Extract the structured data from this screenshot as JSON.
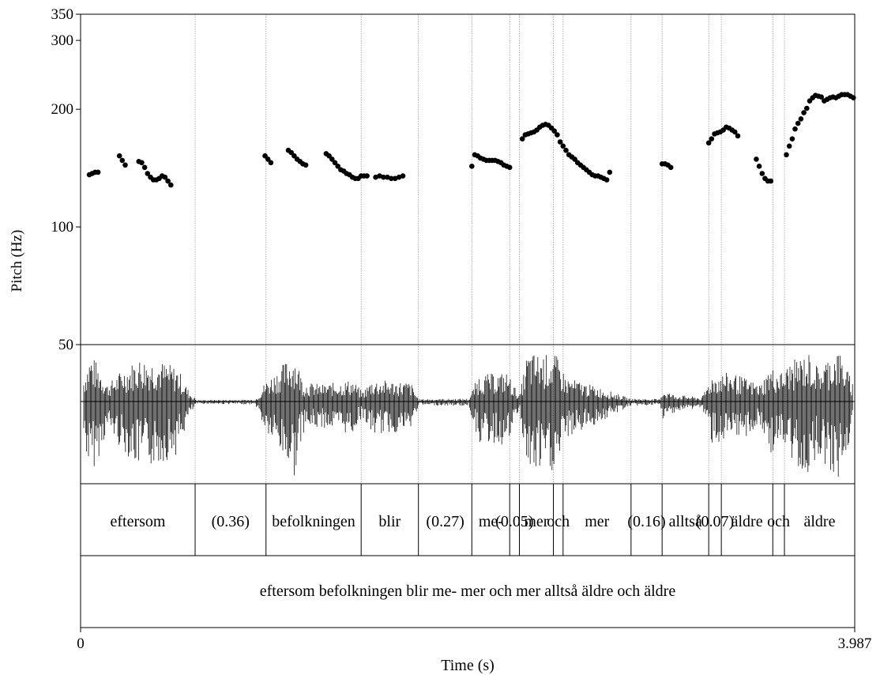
{
  "chart_data": {
    "type": "scatter",
    "ylabel": "Pitch (Hz)",
    "xlabel": "Time (s)",
    "ylim": [
      50,
      350
    ],
    "xlim": [
      0,
      3.987
    ],
    "y_ticks": [
      "50",
      "100",
      "200",
      "300",
      "350"
    ],
    "y_tick_values": [
      50,
      100,
      200,
      300,
      350
    ],
    "x_tick_start": "0",
    "x_tick_end": "3.987",
    "grid": false,
    "boundaries": [
      0.59,
      0.955,
      1.445,
      1.74,
      2.015,
      2.21,
      2.26,
      2.435,
      2.485,
      2.835,
      2.995,
      3.235,
      3.3,
      3.565,
      3.625
    ],
    "tier1_labels": [
      {
        "text": "eftersom",
        "t": 0.295
      },
      {
        "text": "(0.36)",
        "t": 0.772
      },
      {
        "text": "befolkningen",
        "t": 1.2
      },
      {
        "text": "blir",
        "t": 1.592
      },
      {
        "text": "(0.27)",
        "t": 1.878
      },
      {
        "text": "me-",
        "t": 2.113
      },
      {
        "text": "(0.05)",
        "t": 2.235
      },
      {
        "text": "mer",
        "t": 2.347
      },
      {
        "text": "och",
        "t": 2.46
      },
      {
        "text": "mer",
        "t": 2.66
      },
      {
        "text": "(0.16)",
        "t": 2.915
      },
      {
        "text": "alltså",
        "t": 3.115
      },
      {
        "text": "(0.07)",
        "t": 3.267
      },
      {
        "text": "äldre",
        "t": 3.432
      },
      {
        "text": "och",
        "t": 3.595
      },
      {
        "text": "äldre",
        "t": 3.806
      }
    ],
    "tier2_label": "eftersom befolkningen blir me- mer och mer alltså äldre och äldre",
    "series": [
      {
        "points": [
          [
            0.045,
            136
          ],
          [
            0.06,
            137
          ],
          [
            0.075,
            138
          ],
          [
            0.09,
            138
          ],
          [
            0.2,
            152
          ],
          [
            0.215,
            148
          ],
          [
            0.23,
            144
          ],
          [
            0.3,
            147
          ],
          [
            0.315,
            146
          ],
          [
            0.33,
            142
          ],
          [
            0.345,
            137
          ],
          [
            0.36,
            134
          ],
          [
            0.375,
            132
          ],
          [
            0.39,
            132
          ],
          [
            0.405,
            133
          ],
          [
            0.42,
            135
          ],
          [
            0.435,
            134
          ],
          [
            0.45,
            131
          ],
          [
            0.465,
            128
          ],
          [
            0.95,
            152
          ],
          [
            0.965,
            149
          ],
          [
            0.98,
            146
          ],
          [
            1.07,
            157
          ],
          [
            1.085,
            155
          ],
          [
            1.1,
            152
          ],
          [
            1.115,
            149
          ],
          [
            1.13,
            147
          ],
          [
            1.145,
            145
          ],
          [
            1.16,
            144
          ],
          [
            1.265,
            154
          ],
          [
            1.28,
            152
          ],
          [
            1.295,
            149
          ],
          [
            1.31,
            146
          ],
          [
            1.325,
            143
          ],
          [
            1.34,
            140
          ],
          [
            1.355,
            139
          ],
          [
            1.37,
            137
          ],
          [
            1.385,
            136
          ],
          [
            1.4,
            134
          ],
          [
            1.415,
            133
          ],
          [
            1.43,
            133
          ],
          [
            1.445,
            135
          ],
          [
            1.46,
            135
          ],
          [
            1.475,
            135
          ],
          [
            1.52,
            134
          ],
          [
            1.54,
            135
          ],
          [
            1.56,
            134
          ],
          [
            1.58,
            134
          ],
          [
            1.6,
            133
          ],
          [
            1.62,
            133
          ],
          [
            1.64,
            134
          ],
          [
            1.66,
            135
          ],
          [
            2.015,
            143
          ],
          [
            2.03,
            153
          ],
          [
            2.045,
            152
          ],
          [
            2.06,
            150
          ],
          [
            2.075,
            149
          ],
          [
            2.09,
            148
          ],
          [
            2.105,
            148
          ],
          [
            2.12,
            148
          ],
          [
            2.135,
            148
          ],
          [
            2.15,
            147
          ],
          [
            2.165,
            146
          ],
          [
            2.18,
            144
          ],
          [
            2.195,
            143
          ],
          [
            2.21,
            142
          ],
          [
            2.275,
            168
          ],
          [
            2.29,
            172
          ],
          [
            2.305,
            173
          ],
          [
            2.32,
            174
          ],
          [
            2.335,
            175
          ],
          [
            2.35,
            177
          ],
          [
            2.365,
            180
          ],
          [
            2.38,
            182
          ],
          [
            2.395,
            183
          ],
          [
            2.41,
            182
          ],
          [
            2.425,
            179
          ],
          [
            2.44,
            176
          ],
          [
            2.455,
            172
          ],
          [
            2.47,
            165
          ],
          [
            2.485,
            161
          ],
          [
            2.5,
            157
          ],
          [
            2.515,
            153
          ],
          [
            2.53,
            151
          ],
          [
            2.545,
            149
          ],
          [
            2.56,
            146
          ],
          [
            2.575,
            144
          ],
          [
            2.59,
            142
          ],
          [
            2.605,
            140
          ],
          [
            2.62,
            138
          ],
          [
            2.635,
            136
          ],
          [
            2.65,
            135
          ],
          [
            2.665,
            135
          ],
          [
            2.68,
            134
          ],
          [
            2.695,
            133
          ],
          [
            2.71,
            132
          ],
          [
            2.725,
            138
          ],
          [
            2.995,
            145
          ],
          [
            3.01,
            145
          ],
          [
            3.025,
            144
          ],
          [
            3.04,
            142
          ],
          [
            3.235,
            164
          ],
          [
            3.25,
            168
          ],
          [
            3.265,
            173
          ],
          [
            3.28,
            174
          ],
          [
            3.295,
            175
          ],
          [
            3.31,
            177
          ],
          [
            3.325,
            180
          ],
          [
            3.34,
            179
          ],
          [
            3.355,
            177
          ],
          [
            3.37,
            175
          ],
          [
            3.385,
            171
          ],
          [
            3.48,
            149
          ],
          [
            3.495,
            143
          ],
          [
            3.51,
            137
          ],
          [
            3.525,
            133
          ],
          [
            3.54,
            131
          ],
          [
            3.555,
            131
          ],
          [
            3.635,
            153
          ],
          [
            3.65,
            161
          ],
          [
            3.665,
            168
          ],
          [
            3.68,
            178
          ],
          [
            3.695,
            184
          ],
          [
            3.71,
            189
          ],
          [
            3.725,
            196
          ],
          [
            3.74,
            201
          ],
          [
            3.755,
            210
          ],
          [
            3.77,
            214
          ],
          [
            3.785,
            217
          ],
          [
            3.8,
            216
          ],
          [
            3.815,
            215
          ],
          [
            3.83,
            210
          ],
          [
            3.845,
            212
          ],
          [
            3.86,
            214
          ],
          [
            3.875,
            215
          ],
          [
            3.89,
            214
          ],
          [
            3.905,
            216
          ],
          [
            3.92,
            218
          ],
          [
            3.935,
            218
          ],
          [
            3.95,
            218
          ],
          [
            3.965,
            216
          ],
          [
            3.98,
            214
          ]
        ]
      }
    ]
  }
}
